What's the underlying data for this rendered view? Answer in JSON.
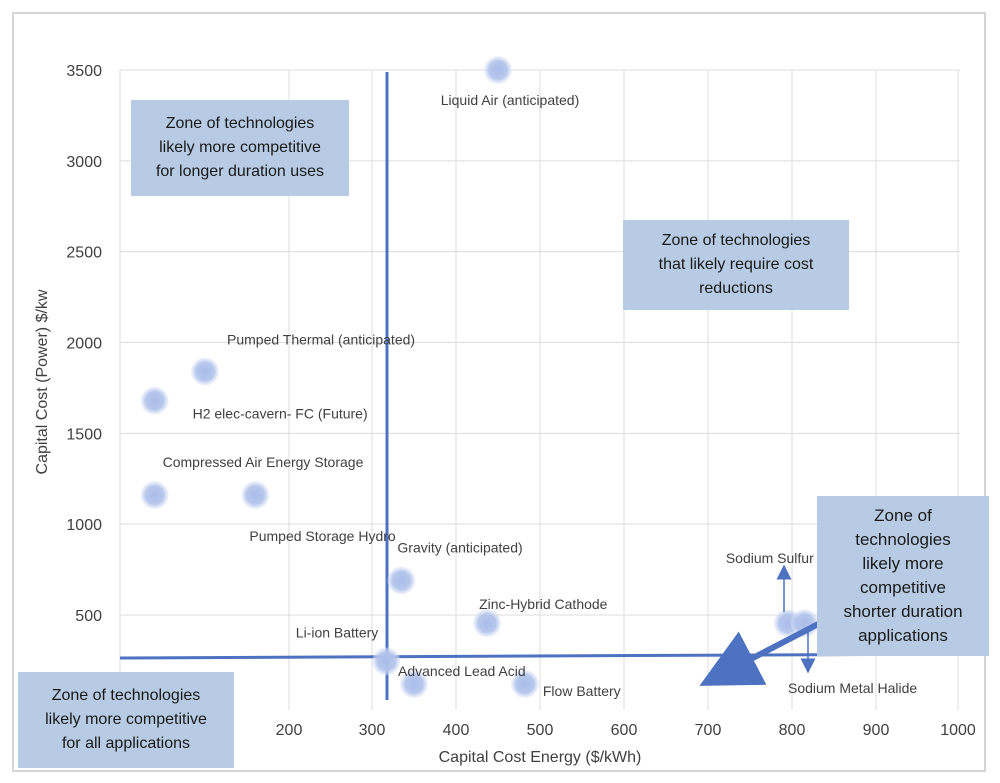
{
  "chart_data": {
    "type": "scatter",
    "xlabel": "Capital Cost Energy ($/kWh)",
    "ylabel": "Capital Cost (Power) $/kw",
    "xlim": [
      100,
      1000
    ],
    "ylim": [
      0,
      3500
    ],
    "x_ticks": [
      200,
      300,
      400,
      500,
      600,
      700,
      800,
      900,
      1000
    ],
    "y_ticks": [
      500,
      1000,
      1500,
      2000,
      2500,
      3000,
      3500
    ],
    "grid": true,
    "points": [
      {
        "label": "Liquid Air (anticipated)",
        "x": 450,
        "y": 3500
      },
      {
        "label": "Pumped Thermal  (anticipated)",
        "x": 150,
        "y": 1840
      },
      {
        "label": "H2 elec-cavern- FC (Future)",
        "x": 120,
        "y": 1680
      },
      {
        "label": "Compressed Air Energy Storage",
        "x": 120,
        "y": 1160
      },
      {
        "label": "Pumped Storage Hydro",
        "x": 180,
        "y": 1160
      },
      {
        "label": "Gravity (anticipated)",
        "x": 335,
        "y": 690
      },
      {
        "label": "Zinc-Hybrid Cathode",
        "x": 437,
        "y": 455
      },
      {
        "label": "Li-ion Battery",
        "x": 317,
        "y": 245
      },
      {
        "label": "Advanced Lead Acid",
        "x": 350,
        "y": 120
      },
      {
        "label": "Flow Battery",
        "x": 482,
        "y": 120
      },
      {
        "label": "Sodium Sulfur",
        "x": 795,
        "y": 455
      },
      {
        "label": "Sodium Metal Halide",
        "x": 815,
        "y": 455
      }
    ],
    "dividers": {
      "vertical_x": 320,
      "horizontal_y": 260
    },
    "zones": [
      {
        "lines": [
          "Zone of technologies",
          "likely more competitive",
          "for longer duration uses"
        ]
      },
      {
        "lines": [
          "Zone of technologies",
          "that likely require cost",
          "reductions"
        ]
      },
      {
        "lines": [
          "Zone of",
          "technologies",
          "likely more",
          "competitive",
          "shorter duration",
          "applications"
        ]
      },
      {
        "lines": [
          "Zone of technologies",
          "likely more competitive",
          "for all applications"
        ]
      }
    ],
    "colors": {
      "marker": "#9fb3e3",
      "divider": "#4d72c1",
      "zone_fill": "#b7cbe4",
      "grid": "#dcdcdc",
      "text": "#404040"
    }
  }
}
